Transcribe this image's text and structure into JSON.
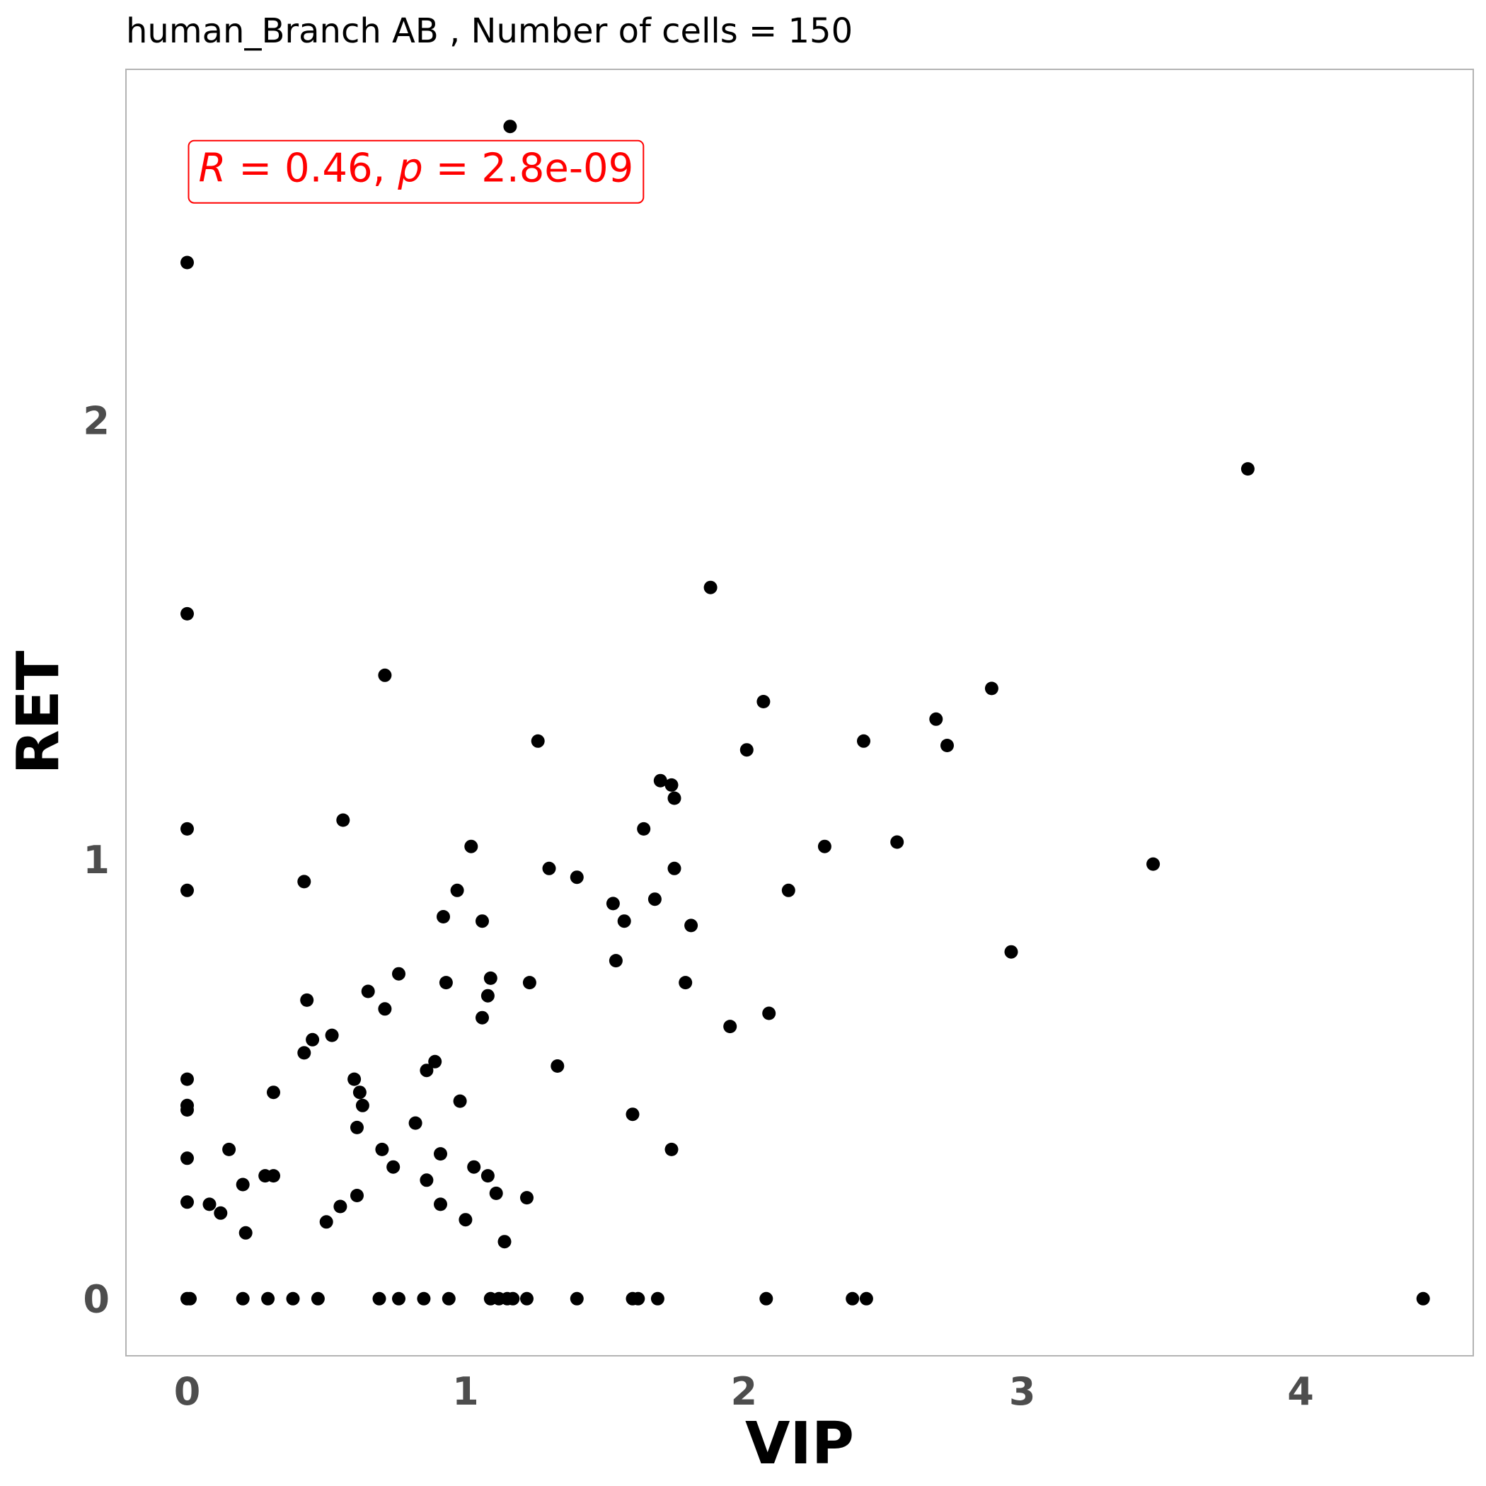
{
  "chart_data": {
    "type": "scatter",
    "title": "human_Branch AB , Number of cells =  150",
    "xlabel": "VIP",
    "ylabel": "RET",
    "xlim": [
      -0.22,
      4.62
    ],
    "ylim": [
      -0.13,
      2.8
    ],
    "xticks": [
      0,
      1,
      2,
      3,
      4
    ],
    "yticks": [
      0,
      1,
      2
    ],
    "grid": false,
    "point_color": "#000000",
    "annotation": {
      "r_label": "R",
      "r_value": " = 0.46, ",
      "p_label": "p",
      "p_value": " = 2.8e-09",
      "color": "#ff0000",
      "anchor": [
        0.0,
        2.67
      ]
    },
    "points": [
      {
        "x": 1.16,
        "y": 2.67
      },
      {
        "x": 0.0,
        "y": 2.36
      },
      {
        "x": 3.81,
        "y": 1.89
      },
      {
        "x": 1.88,
        "y": 1.62
      },
      {
        "x": 0.0,
        "y": 1.56
      },
      {
        "x": 0.71,
        "y": 1.42
      },
      {
        "x": 2.89,
        "y": 1.39
      },
      {
        "x": 2.07,
        "y": 1.36
      },
      {
        "x": 2.69,
        "y": 1.32
      },
      {
        "x": 1.26,
        "y": 1.27
      },
      {
        "x": 2.43,
        "y": 1.27
      },
      {
        "x": 2.73,
        "y": 1.26
      },
      {
        "x": 2.01,
        "y": 1.25
      },
      {
        "x": 1.7,
        "y": 1.18
      },
      {
        "x": 1.74,
        "y": 1.17
      },
      {
        "x": 1.75,
        "y": 1.14
      },
      {
        "x": 0.56,
        "y": 1.09
      },
      {
        "x": 0.0,
        "y": 1.07
      },
      {
        "x": 1.64,
        "y": 1.07
      },
      {
        "x": 1.02,
        "y": 1.03
      },
      {
        "x": 2.29,
        "y": 1.03
      },
      {
        "x": 2.55,
        "y": 1.04
      },
      {
        "x": 3.47,
        "y": 0.99
      },
      {
        "x": 1.3,
        "y": 0.98
      },
      {
        "x": 1.75,
        "y": 0.98
      },
      {
        "x": 1.4,
        "y": 0.96
      },
      {
        "x": 0.42,
        "y": 0.95
      },
      {
        "x": 0.0,
        "y": 0.93
      },
      {
        "x": 0.97,
        "y": 0.93
      },
      {
        "x": 2.16,
        "y": 0.93
      },
      {
        "x": 1.68,
        "y": 0.91
      },
      {
        "x": 1.53,
        "y": 0.9
      },
      {
        "x": 0.92,
        "y": 0.87
      },
      {
        "x": 1.06,
        "y": 0.86
      },
      {
        "x": 1.57,
        "y": 0.86
      },
      {
        "x": 1.81,
        "y": 0.85
      },
      {
        "x": 2.96,
        "y": 0.79
      },
      {
        "x": 1.54,
        "y": 0.77
      },
      {
        "x": 0.76,
        "y": 0.74
      },
      {
        "x": 0.93,
        "y": 0.72
      },
      {
        "x": 1.09,
        "y": 0.73
      },
      {
        "x": 1.23,
        "y": 0.72
      },
      {
        "x": 1.79,
        "y": 0.72
      },
      {
        "x": 0.65,
        "y": 0.7
      },
      {
        "x": 1.08,
        "y": 0.69
      },
      {
        "x": 0.43,
        "y": 0.68
      },
      {
        "x": 0.71,
        "y": 0.66
      },
      {
        "x": 2.09,
        "y": 0.65
      },
      {
        "x": 1.06,
        "y": 0.64
      },
      {
        "x": 1.95,
        "y": 0.62
      },
      {
        "x": 0.52,
        "y": 0.6
      },
      {
        "x": 0.45,
        "y": 0.59
      },
      {
        "x": 0.42,
        "y": 0.56
      },
      {
        "x": 0.89,
        "y": 0.54
      },
      {
        "x": 1.33,
        "y": 0.53
      },
      {
        "x": 0.86,
        "y": 0.52
      },
      {
        "x": 0.0,
        "y": 0.5
      },
      {
        "x": 0.6,
        "y": 0.5
      },
      {
        "x": 0.62,
        "y": 0.47
      },
      {
        "x": 0.31,
        "y": 0.47
      },
      {
        "x": 0.98,
        "y": 0.45
      },
      {
        "x": 0.0,
        "y": 0.44
      },
      {
        "x": 0.63,
        "y": 0.44
      },
      {
        "x": 0.0,
        "y": 0.43
      },
      {
        "x": 1.6,
        "y": 0.42
      },
      {
        "x": 0.82,
        "y": 0.4
      },
      {
        "x": 0.61,
        "y": 0.39
      },
      {
        "x": 0.7,
        "y": 0.34
      },
      {
        "x": 0.15,
        "y": 0.34
      },
      {
        "x": 1.74,
        "y": 0.34
      },
      {
        "x": 0.91,
        "y": 0.33
      },
      {
        "x": 0.0,
        "y": 0.32
      },
      {
        "x": 0.74,
        "y": 0.3
      },
      {
        "x": 1.03,
        "y": 0.3
      },
      {
        "x": 1.08,
        "y": 0.28
      },
      {
        "x": 0.28,
        "y": 0.28
      },
      {
        "x": 0.31,
        "y": 0.28
      },
      {
        "x": 0.86,
        "y": 0.27
      },
      {
        "x": 0.2,
        "y": 0.26
      },
      {
        "x": 1.11,
        "y": 0.24
      },
      {
        "x": 0.61,
        "y": 0.235
      },
      {
        "x": 1.22,
        "y": 0.23
      },
      {
        "x": 0.0,
        "y": 0.22
      },
      {
        "x": 0.08,
        "y": 0.215
      },
      {
        "x": 0.55,
        "y": 0.21
      },
      {
        "x": 0.91,
        "y": 0.215
      },
      {
        "x": 0.12,
        "y": 0.195
      },
      {
        "x": 1.0,
        "y": 0.18
      },
      {
        "x": 0.5,
        "y": 0.175
      },
      {
        "x": 0.21,
        "y": 0.15
      },
      {
        "x": 1.14,
        "y": 0.13
      },
      {
        "x": 0.0,
        "y": 0.0
      },
      {
        "x": 0.01,
        "y": 0.0
      },
      {
        "x": 0.2,
        "y": 0.0
      },
      {
        "x": 0.29,
        "y": 0.0
      },
      {
        "x": 0.38,
        "y": 0.0
      },
      {
        "x": 0.47,
        "y": 0.0
      },
      {
        "x": 0.69,
        "y": 0.0
      },
      {
        "x": 0.76,
        "y": 0.0
      },
      {
        "x": 0.85,
        "y": 0.0
      },
      {
        "x": 0.94,
        "y": 0.0
      },
      {
        "x": 1.09,
        "y": 0.0
      },
      {
        "x": 1.12,
        "y": 0.0
      },
      {
        "x": 1.15,
        "y": 0.0
      },
      {
        "x": 1.17,
        "y": 0.0
      },
      {
        "x": 1.22,
        "y": 0.0
      },
      {
        "x": 1.4,
        "y": 0.0
      },
      {
        "x": 1.6,
        "y": 0.0
      },
      {
        "x": 1.62,
        "y": 0.0
      },
      {
        "x": 1.69,
        "y": 0.0
      },
      {
        "x": 2.08,
        "y": 0.0
      },
      {
        "x": 2.39,
        "y": 0.0
      },
      {
        "x": 2.44,
        "y": 0.0
      },
      {
        "x": 4.44,
        "y": 0.0
      }
    ]
  }
}
